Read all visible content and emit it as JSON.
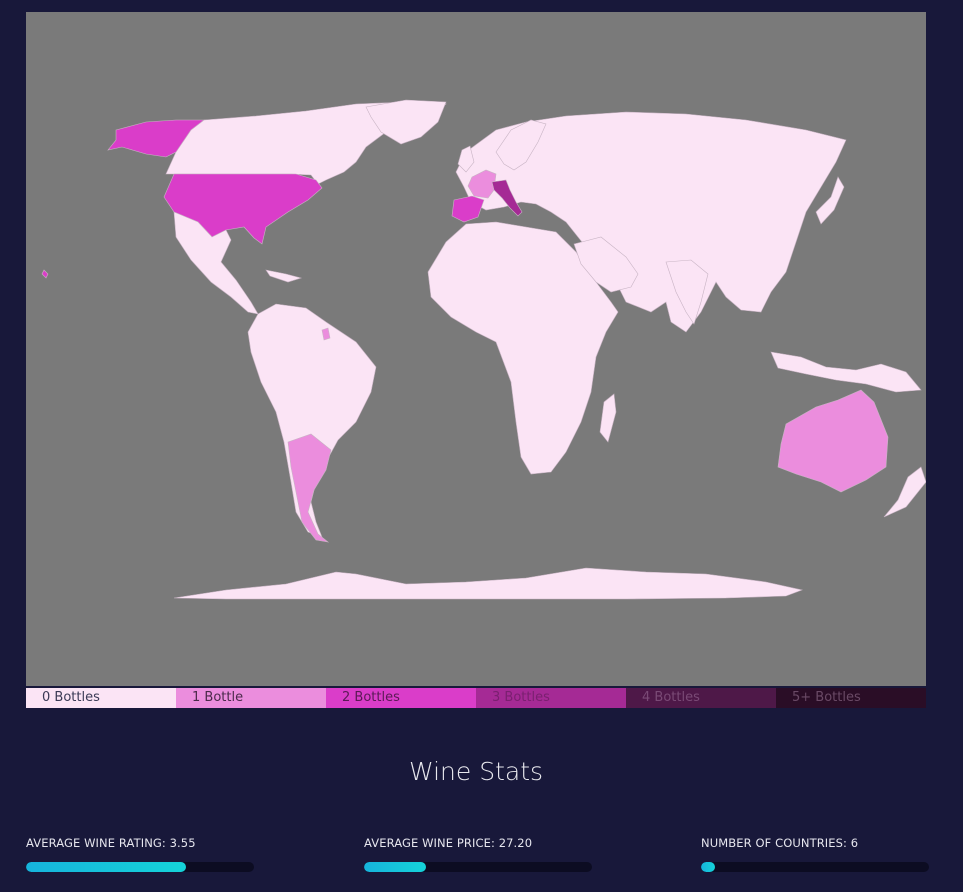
{
  "map": {
    "colors": {
      "background": "#7a7a7a",
      "bottles_0": "#fbe4f5",
      "bottles_1": "#eb8ddd",
      "bottles_2": "#da3dc9",
      "bottles_3": "#a52a95"
    },
    "countries": [
      {
        "name": "United States",
        "bottles": 2
      },
      {
        "name": "Spain",
        "bottles": 2
      },
      {
        "name": "Italy",
        "bottles": 3
      },
      {
        "name": "France",
        "bottles": 1
      },
      {
        "name": "Argentina",
        "bottles": 1
      },
      {
        "name": "Australia",
        "bottles": 1
      }
    ]
  },
  "legend": [
    {
      "label": "0 Bottles",
      "bg": "#fbe4f5",
      "fg": "#3a3a55"
    },
    {
      "label": "1 Bottle",
      "bg": "#eb8ddd",
      "fg": "#4a2a4a"
    },
    {
      "label": "2 Bottles",
      "bg": "#da3dc9",
      "fg": "#5a1a55"
    },
    {
      "label": "3 Bottles",
      "bg": "#a52a95",
      "fg": "#7a2070"
    },
    {
      "label": "4 Bottles",
      "bg": "#4e1848",
      "fg": "#7a4a76"
    },
    {
      "label": "5+ Bottles",
      "bg": "#2a0d26",
      "fg": "#6a4a66"
    }
  ],
  "stats": {
    "title": "Wine Stats",
    "rating": {
      "label": "AVERAGE WINE RATING: 3.55",
      "fill_percent": 70
    },
    "price": {
      "label": "AVERAGE WINE PRICE: 27.20",
      "fill_percent": 27
    },
    "countries": {
      "label": "NUMBER OF COUNTRIES: 6",
      "fill_percent": 6
    }
  }
}
